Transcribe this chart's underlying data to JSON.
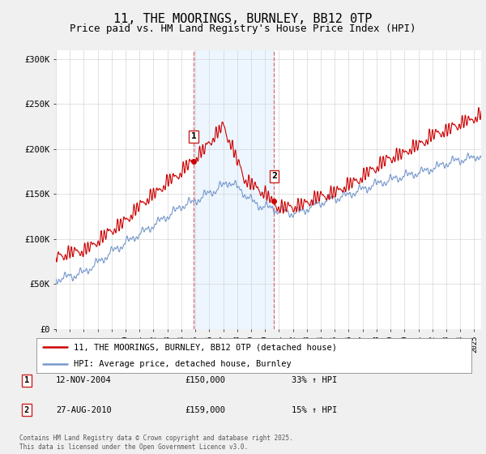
{
  "title": "11, THE MOORINGS, BURNLEY, BB12 0TP",
  "subtitle": "Price paid vs. HM Land Registry's House Price Index (HPI)",
  "ylabel_ticks": [
    "£0",
    "£50K",
    "£100K",
    "£150K",
    "£200K",
    "£250K",
    "£300K"
  ],
  "ytick_vals": [
    0,
    50000,
    100000,
    150000,
    200000,
    250000,
    300000
  ],
  "ylim": [
    0,
    310000
  ],
  "xlim_start": 1995.0,
  "xlim_end": 2025.5,
  "legend_line1": "11, THE MOORINGS, BURNLEY, BB12 0TP (detached house)",
  "legend_line2": "HPI: Average price, detached house, Burnley",
  "line1_color": "#cc0000",
  "line2_color": "#7799cc",
  "marker1_date": 2004.87,
  "marker2_date": 2010.65,
  "marker1_price": 150000,
  "marker2_price": 159000,
  "shade_color": "#ddeeff",
  "shade_alpha": 0.5,
  "vline_color": "#dd6666",
  "background_color": "#f0f0f0",
  "plot_bg_color": "#ffffff",
  "grid_color": "#cccccc",
  "title_fontsize": 11,
  "subtitle_fontsize": 9,
  "copyright": "Contains HM Land Registry data © Crown copyright and database right 2025.\nThis data is licensed under the Open Government Licence v3.0."
}
